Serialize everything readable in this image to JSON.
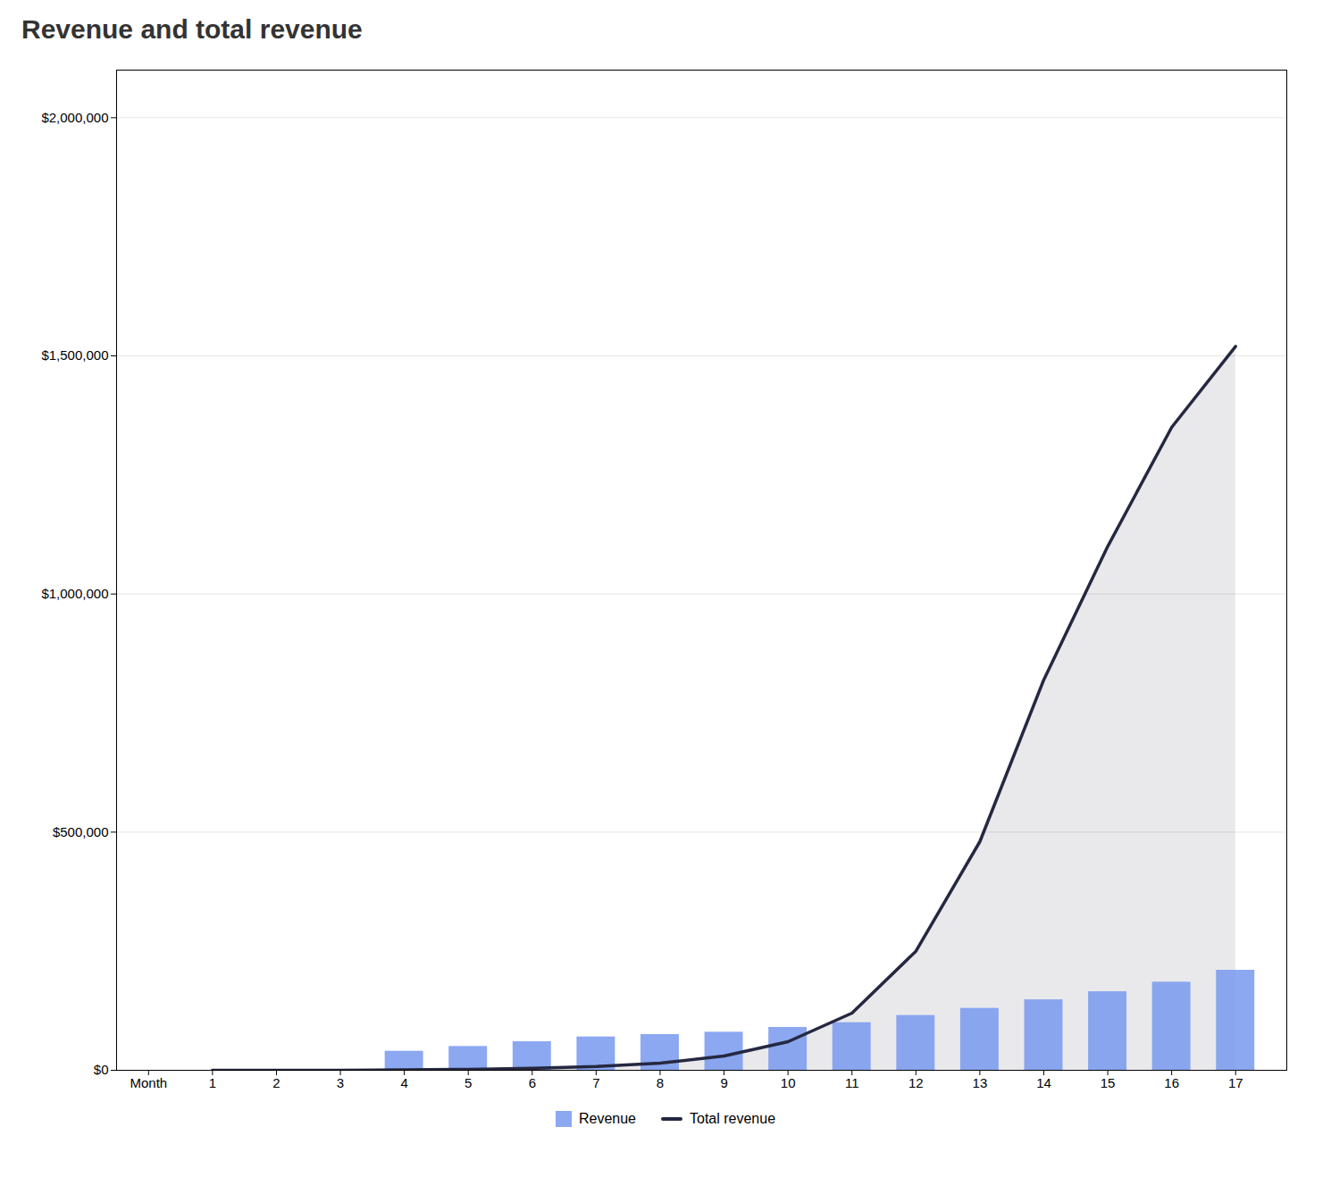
{
  "chart_data": {
    "type": "bar",
    "title": "Revenue and total revenue",
    "x": [
      1,
      2,
      3,
      4,
      5,
      6,
      7,
      8,
      9,
      10,
      11,
      12,
      13,
      14,
      15,
      16,
      17
    ],
    "series": [
      {
        "name": "Revenue",
        "type": "bar",
        "color": "#7799ee",
        "values": [
          0,
          0,
          0,
          40000,
          50000,
          60000,
          70000,
          75000,
          80000,
          90000,
          100000,
          115000,
          130000,
          148000,
          165000,
          185000,
          210000
        ]
      },
      {
        "name": "Total revenue",
        "type": "line",
        "color": "#252840",
        "values": [
          0,
          0,
          0,
          1000,
          2000,
          4000,
          8000,
          15000,
          30000,
          60000,
          120000,
          250000,
          480000,
          820000,
          1100000,
          1350000,
          1520000
        ]
      }
    ],
    "xlim": [
      -0.5,
      17.8
    ],
    "xticks": [
      {
        "value": 0,
        "label": "Month"
      },
      1,
      2,
      3,
      4,
      5,
      6,
      7,
      8,
      9,
      10,
      11,
      12,
      13,
      14,
      15,
      16,
      17
    ],
    "ylim": [
      0,
      2100000
    ],
    "yticks": [
      {
        "value": 0,
        "label": "$0"
      },
      {
        "value": 500000,
        "label": "$500,000"
      },
      {
        "value": 1000000,
        "label": "$1,000,000"
      },
      {
        "value": 1500000,
        "label": "$1,500,000"
      },
      {
        "value": 2000000,
        "label": "$2,000,000"
      }
    ],
    "grid": true,
    "legend": "bottom"
  }
}
